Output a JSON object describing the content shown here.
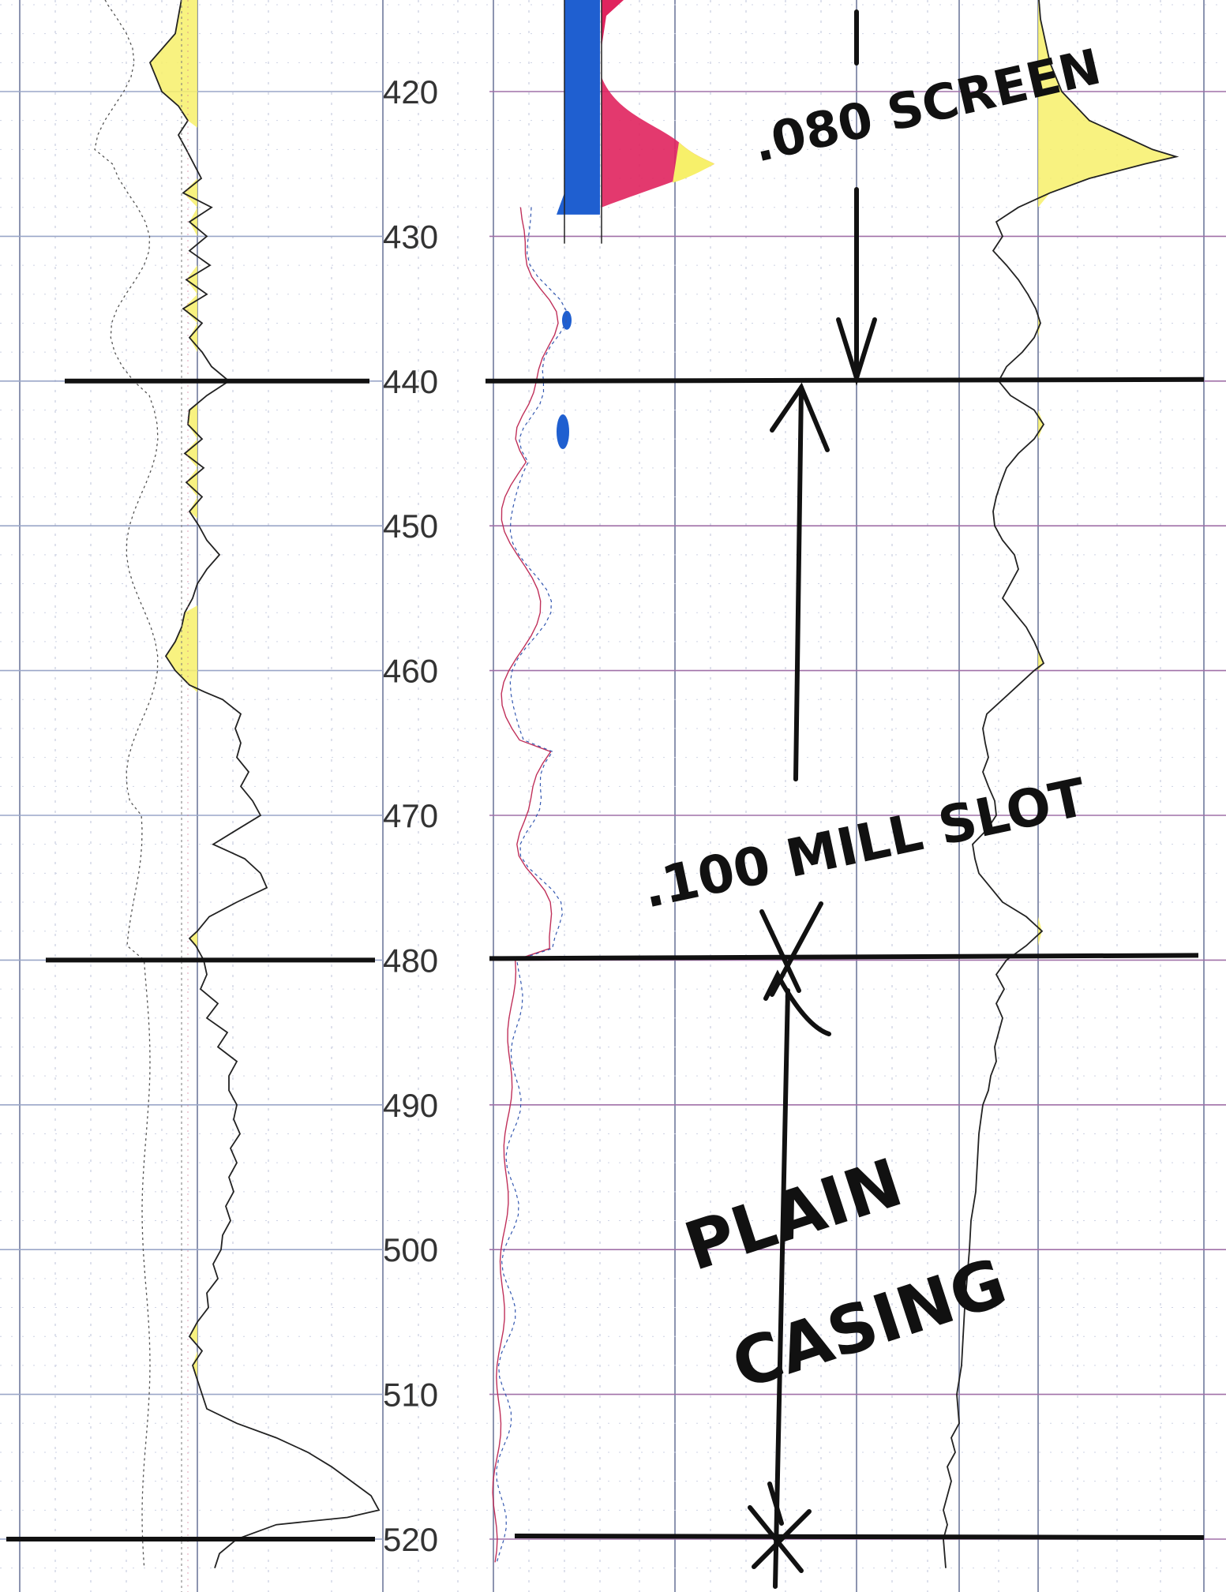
{
  "chart_data": {
    "type": "well-log",
    "depth_axis": {
      "range": [
        413,
        522
      ],
      "tick_labels": [
        "420",
        "430",
        "440",
        "450",
        "460",
        "470",
        "480",
        "490",
        "500",
        "510",
        "520"
      ],
      "tick_values": [
        420,
        430,
        440,
        450,
        460,
        470,
        480,
        490,
        500,
        510,
        520
      ]
    },
    "zone_boundaries": [
      440,
      480,
      520
    ],
    "intervals": [
      {
        "label": ".080 SCREEN",
        "top": 413,
        "bottom": 440
      },
      {
        "label": ".100 MILL SLOT",
        "top": 440,
        "bottom": 480
      },
      {
        "label": "PLAIN CASING",
        "top": 480,
        "bottom": 520
      }
    ],
    "annotations": {
      "screen": ".080 SCREEN",
      "mill_slot": ".100 MILL SLOT",
      "plain": "PLAIN",
      "casing": "CASING"
    },
    "colors": {
      "yellow_fill": "#f7f06a",
      "blue_fill": "#1f5fd0",
      "red_fill": "#e0245e",
      "grid_blue": "#9aa6c8",
      "grid_purple": "#a070a8",
      "ink": "#111111"
    }
  }
}
